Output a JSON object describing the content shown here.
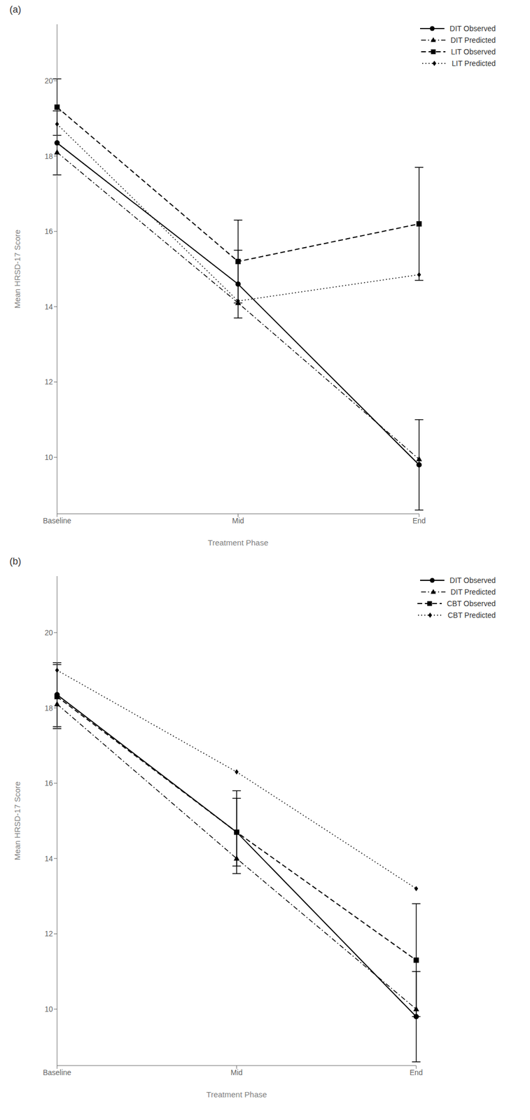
{
  "chart_data": [
    {
      "type": "line",
      "title": "(a)",
      "x_label": "Treatment Phase",
      "y_label": "Mean HRSD-17 Score",
      "categories": [
        "Baseline",
        "Mid",
        "End"
      ],
      "color": "#000000",
      "ylim": [
        8.5,
        21.5
      ],
      "yticks": [
        10,
        12,
        14,
        16,
        18,
        20
      ],
      "legend": "upper right",
      "series": [
        {
          "name": "DIT Observed",
          "values": [
            18.35,
            14.6,
            9.8
          ],
          "errors": [
            0.85,
            0.9,
            1.2
          ],
          "line_style": "solid",
          "marker": "circle"
        },
        {
          "name": "DIT Predicted",
          "values": [
            18.1,
            14.1,
            9.95
          ],
          "line_style": "dashdot",
          "marker": "triangle"
        },
        {
          "name": "LIT Observed",
          "values": [
            19.3,
            15.2,
            16.2
          ],
          "errors": [
            0.75,
            1.1,
            1.5
          ],
          "line_style": "dashed",
          "marker": "square"
        },
        {
          "name": "LIT Predicted",
          "values": [
            18.85,
            14.15,
            14.85
          ],
          "line_style": "dotted",
          "marker": "diamond"
        }
      ]
    },
    {
      "type": "line",
      "title": "(b)",
      "x_label": "Treatment Phase",
      "y_label": "Mean HRSD-17 Score",
      "categories": [
        "Baseline",
        "Mid",
        "End"
      ],
      "color": "#000000",
      "ylim": [
        8.5,
        21.5
      ],
      "yticks": [
        10,
        12,
        14,
        16,
        18,
        20
      ],
      "legend": "upper right",
      "series": [
        {
          "name": "DIT Observed",
          "values": [
            18.35,
            14.7,
            9.8
          ],
          "errors": [
            0.85,
            0.9,
            1.2
          ],
          "line_style": "solid",
          "marker": "circle"
        },
        {
          "name": "DIT Predicted",
          "values": [
            18.1,
            14.0,
            10.0
          ],
          "line_style": "dashdot",
          "marker": "triangle"
        },
        {
          "name": "CBT Observed",
          "values": [
            18.3,
            14.7,
            11.3
          ],
          "errors": [
            0.85,
            1.1,
            1.5
          ],
          "line_style": "dashed",
          "marker": "square"
        },
        {
          "name": "CBT Predicted",
          "values": [
            19.0,
            16.3,
            13.2
          ],
          "line_style": "dotted",
          "marker": "diamond"
        }
      ]
    }
  ]
}
